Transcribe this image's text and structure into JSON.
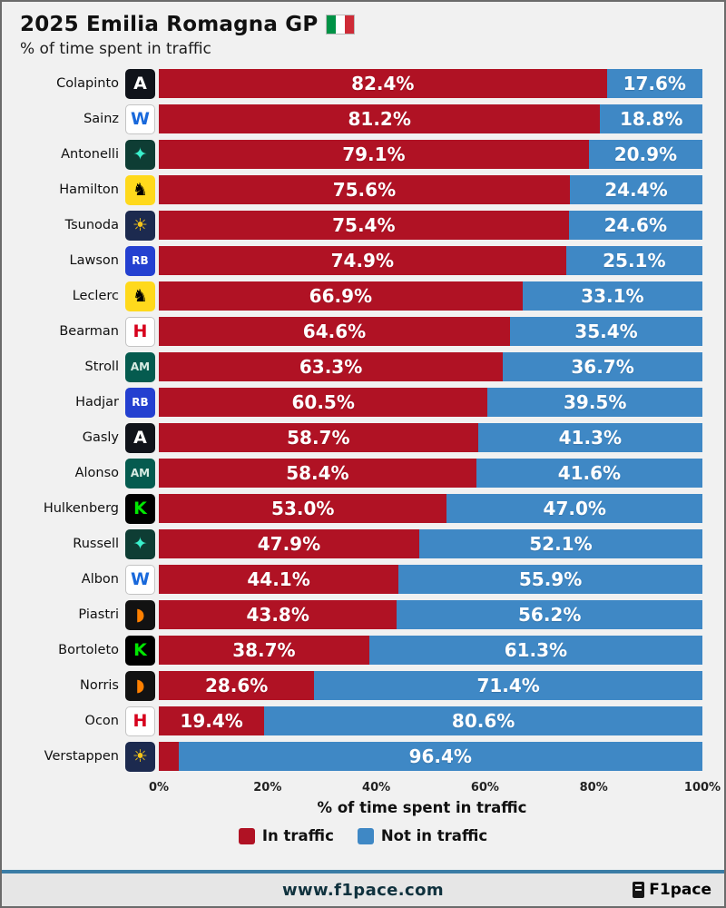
{
  "title": "2025 Emilia Romagna GP",
  "flag": "italy-flag",
  "subtitle": "% of time spent in traffic",
  "chart_data": {
    "type": "bar",
    "orientation": "horizontal",
    "stacked": true,
    "title": "2025 Emilia Romagna GP",
    "subtitle": "% of time spent in traffic",
    "categories": [
      "Colapinto",
      "Sainz",
      "Antonelli",
      "Hamilton",
      "Tsunoda",
      "Lawson",
      "Leclerc",
      "Bearman",
      "Stroll",
      "Hadjar",
      "Gasly",
      "Alonso",
      "Hulkenberg",
      "Russell",
      "Albon",
      "Piastri",
      "Bortoleto",
      "Norris",
      "Ocon",
      "Verstappen"
    ],
    "row_teams": [
      "alpine",
      "williams",
      "mercedes",
      "ferrari",
      "redbull",
      "racingbulls",
      "ferrari",
      "haas",
      "astonmartin",
      "racingbulls",
      "alpine",
      "astonmartin",
      "sauber",
      "mercedes",
      "williams",
      "mclaren",
      "sauber",
      "mclaren",
      "haas",
      "redbull"
    ],
    "series": [
      {
        "name": "In traffic",
        "color": "#b01224",
        "values": [
          82.4,
          81.2,
          79.1,
          75.6,
          75.4,
          74.9,
          66.9,
          64.6,
          63.3,
          60.5,
          58.7,
          58.4,
          53.0,
          47.9,
          44.1,
          43.8,
          38.7,
          28.6,
          19.4,
          3.6
        ]
      },
      {
        "name": "Not in traffic",
        "color": "#3f88c5",
        "values": [
          17.6,
          18.8,
          20.9,
          24.4,
          24.6,
          25.1,
          33.1,
          35.4,
          36.7,
          39.5,
          41.3,
          41.6,
          47.0,
          52.1,
          55.9,
          56.2,
          61.3,
          71.4,
          80.6,
          96.4
        ]
      }
    ],
    "value_suffix": "%",
    "min_label_value": 8,
    "xticks": [
      "0%",
      "20%",
      "40%",
      "60%",
      "80%",
      "100%"
    ],
    "xlim": [
      0,
      100
    ],
    "xlabel": "% of time spent in traffic",
    "legend_position": "bottom",
    "grid": false
  },
  "teams": {
    "alpine": {
      "bg": "#10131a",
      "fg": "#ffffff",
      "glyph": "A"
    },
    "williams": {
      "bg": "#ffffff",
      "fg": "#1868db",
      "glyph": "W",
      "border": "#c4c4c4"
    },
    "mercedes": {
      "bg": "#0e3d34",
      "fg": "#3af0cd",
      "glyph": "✦"
    },
    "ferrari": {
      "bg": "#ffd91c",
      "fg": "#000000",
      "glyph": "♞"
    },
    "redbull": {
      "bg": "#1c2a4f",
      "fg": "#f5c518",
      "glyph": "☀"
    },
    "racingbulls": {
      "bg": "#2440d0",
      "fg": "#ffffff",
      "glyph": "RB"
    },
    "haas": {
      "bg": "#ffffff",
      "fg": "#d6001c",
      "glyph": "H",
      "border": "#c4c4c4"
    },
    "astonmartin": {
      "bg": "#055b4f",
      "fg": "#d8ece4",
      "glyph": "AM"
    },
    "sauber": {
      "bg": "#000000",
      "fg": "#00e701",
      "glyph": "K"
    },
    "mclaren": {
      "bg": "#121212",
      "fg": "#ff8000",
      "glyph": "◗"
    }
  },
  "footer": {
    "url": "www.f1pace.com",
    "brand": "F1pace"
  }
}
